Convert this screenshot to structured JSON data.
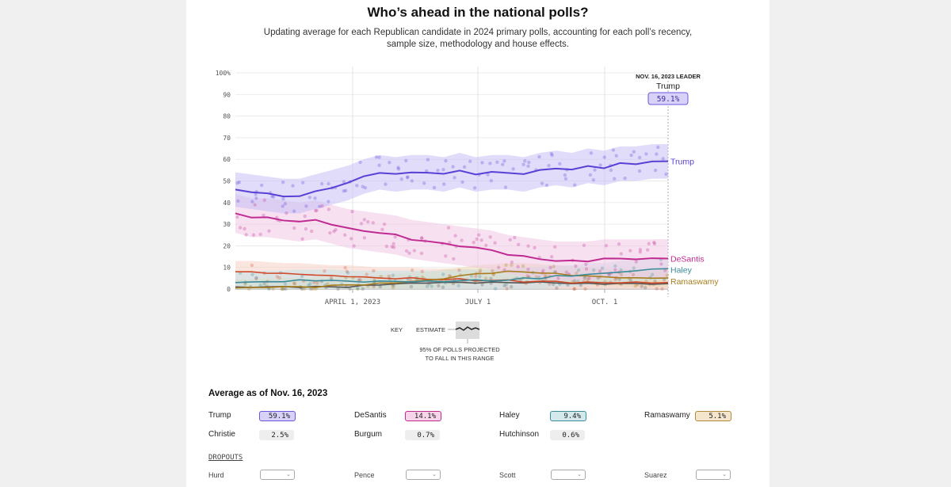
{
  "header": {
    "title": "Who’s ahead in the national polls?",
    "subtitle": "Updating average for each Republican candidate in 2024 primary polls, accounting for each poll’s recency, sample size, methodology and house effects."
  },
  "chart_data": {
    "type": "line",
    "title": "Who’s ahead in the national polls?",
    "ylim": [
      0,
      100
    ],
    "y_ticks": [
      "100%",
      "90",
      "80",
      "70",
      "60",
      "50",
      "40",
      "30",
      "20",
      "10",
      "0"
    ],
    "x_ticks": [
      "APRIL 1, 2023",
      "JULY 1",
      "OCT. 1"
    ],
    "leader_label": "NOV. 16, 2023 LEADER",
    "leader_name": "Trump",
    "leader_value": "59.1%",
    "series": [
      {
        "name": "Trump",
        "color": "#5b3fd6",
        "band_color": "#c7bff5",
        "values": [
          46,
          45,
          44,
          43,
          43,
          45,
          47,
          49,
          52,
          54,
          53,
          54,
          54,
          53,
          55,
          53,
          54,
          54,
          53,
          55,
          56,
          55,
          57,
          56,
          58,
          58,
          59,
          59.1
        ]
      },
      {
        "name": "DeSantis",
        "color": "#c02b92",
        "band_color": "#f1c6e3",
        "values": [
          35,
          33,
          33,
          32,
          31,
          32,
          30,
          28,
          27,
          26,
          25,
          23,
          22,
          21,
          20,
          19,
          18,
          16,
          15,
          14,
          13,
          13,
          13,
          14,
          14,
          14,
          14,
          14.1
        ]
      },
      {
        "name": "Haley",
        "color": "#3a8a9a",
        "band_color": "#c4e2e6",
        "values": [
          3,
          3,
          3.5,
          3.5,
          4,
          4,
          4,
          3.5,
          3.5,
          3.5,
          3.5,
          3.5,
          3.5,
          3.5,
          4,
          4,
          4,
          4,
          5,
          5,
          6,
          6,
          7,
          7,
          8,
          8.5,
          9,
          9.4
        ]
      },
      {
        "name": "Ramaswamy",
        "color": "#a87d1e",
        "band_color": "#ead9b5",
        "values": [
          0.5,
          0.5,
          1,
          1,
          1,
          1,
          1.5,
          2,
          2,
          2.5,
          3,
          3.5,
          4,
          5,
          6,
          7,
          7.5,
          8,
          8,
          7.5,
          7,
          6.5,
          6,
          5.5,
          5.5,
          5,
          5,
          5.1
        ]
      },
      {
        "name": "Pence",
        "color": "#d14a2a",
        "band_color": "#f5cfc4",
        "values": [
          8,
          8,
          7.5,
          7,
          7,
          6.5,
          6,
          6,
          5.5,
          5,
          5,
          5,
          4.5,
          4.5,
          4.5,
          4,
          4,
          4,
          3.5,
          3.5,
          3.5,
          3,
          3,
          3,
          3,
          3,
          3,
          3
        ]
      },
      {
        "name": "Christie",
        "color": "#555555",
        "band_color": "#dddddd",
        "values": [
          1,
          1,
          1,
          1,
          1,
          1,
          1,
          1,
          1.5,
          2,
          2.5,
          2.5,
          3,
          3,
          3,
          3,
          3,
          3,
          3,
          3,
          3,
          2.5,
          2.5,
          2.5,
          2.5,
          2.5,
          2.5,
          2.5
        ]
      }
    ],
    "end_labels": [
      "Trump",
      "DeSantis",
      "Haley",
      "Ramaswamy"
    ]
  },
  "key": {
    "label": "KEY",
    "estimate": "ESTIMATE",
    "range_text_1": "95% OF POLLS PROJECTED",
    "range_text_2": "TO FALL IN THIS RANGE"
  },
  "average": {
    "title": "Average as of Nov. 16, 2023",
    "candidates": [
      {
        "name": "Trump",
        "value": "59.1%",
        "bg": "#d8d2f8",
        "border": "#6b55dd"
      },
      {
        "name": "DeSantis",
        "value": "14.1%",
        "bg": "#f7d4ea",
        "border": "#c02b92"
      },
      {
        "name": "Haley",
        "value": "9.4%",
        "bg": "#d3e9ec",
        "border": "#3a8a9a"
      },
      {
        "name": "Ramaswamy",
        "value": "5.1%",
        "bg": "#f3e6cc",
        "border": "#b08a3a"
      },
      {
        "name": "Christie",
        "value": "2.5%",
        "bg": "#eeeeee",
        "border": "#eeeeee"
      },
      {
        "name": "Burgum",
        "value": "0.7%",
        "bg": "#eeeeee",
        "border": "#eeeeee"
      },
      {
        "name": "Hutchinson",
        "value": "0.6%",
        "bg": "#eeeeee",
        "border": "#eeeeee"
      }
    ]
  },
  "dropouts": {
    "label": "DROPOUTS",
    "names": [
      "Hurd",
      "Pence",
      "Scott",
      "Suarez"
    ],
    "select_glyph": "⌄"
  }
}
